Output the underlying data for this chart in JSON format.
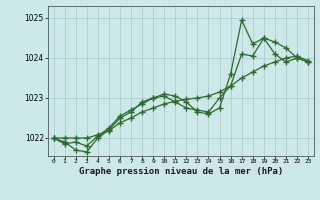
{
  "title": "Graphe pression niveau de la mer (hPa)",
  "bg_color": "#cce8e8",
  "grid_color": "#aacfcf",
  "line_color": "#2d6a2d",
  "xlim": [
    -0.5,
    23.5
  ],
  "ylim": [
    1021.55,
    1025.3
  ],
  "yticks": [
    1022,
    1023,
    1024,
    1025
  ],
  "xticks": [
    0,
    1,
    2,
    3,
    4,
    5,
    6,
    7,
    8,
    9,
    10,
    11,
    12,
    13,
    14,
    15,
    16,
    17,
    18,
    19,
    20,
    21,
    22,
    23
  ],
  "series1": {
    "x": [
      0,
      1,
      2,
      3,
      4,
      5,
      6,
      7,
      8,
      9,
      10,
      11,
      12,
      13,
      14,
      15,
      16,
      17,
      18,
      19,
      20,
      21,
      22,
      23
    ],
    "y": [
      1022.0,
      1021.85,
      1021.9,
      1021.8,
      1022.05,
      1022.25,
      1022.55,
      1022.7,
      1022.85,
      1023.0,
      1023.05,
      1022.9,
      1022.75,
      1022.7,
      1022.65,
      1023.0,
      1023.3,
      1024.1,
      1024.05,
      1024.5,
      1024.1,
      1023.9,
      1024.0,
      1023.9
    ]
  },
  "series2": {
    "x": [
      0,
      1,
      2,
      3,
      4,
      5,
      6,
      7,
      8,
      9,
      10,
      11,
      12,
      13,
      14,
      15,
      16,
      17,
      18,
      19,
      20,
      21,
      22,
      23
    ],
    "y": [
      1022.0,
      1021.9,
      1021.7,
      1021.65,
      1022.0,
      1022.2,
      1022.5,
      1022.65,
      1022.9,
      1023.0,
      1023.1,
      1023.05,
      1022.9,
      1022.65,
      1022.6,
      1022.75,
      1023.6,
      1024.95,
      1024.35,
      1024.5,
      1024.4,
      1024.25,
      1024.0,
      1023.9
    ]
  },
  "series3": {
    "x": [
      0,
      1,
      2,
      3,
      4,
      5,
      6,
      7,
      8,
      9,
      10,
      11,
      12,
      13,
      14,
      15,
      16,
      17,
      18,
      19,
      20,
      21,
      22,
      23
    ],
    "y": [
      1022.0,
      1022.0,
      1022.0,
      1022.0,
      1022.08,
      1022.18,
      1022.38,
      1022.5,
      1022.65,
      1022.75,
      1022.85,
      1022.92,
      1022.97,
      1023.0,
      1023.05,
      1023.15,
      1023.3,
      1023.5,
      1023.65,
      1023.8,
      1023.9,
      1024.0,
      1024.05,
      1023.93
    ]
  }
}
